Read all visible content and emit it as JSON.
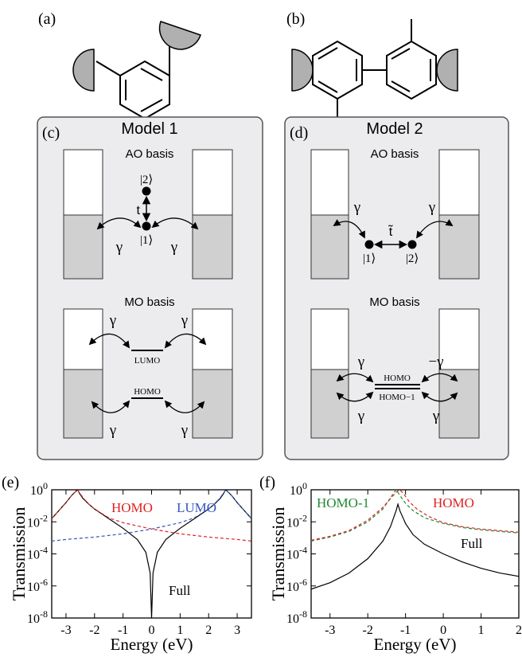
{
  "panels": {
    "a": {
      "label": "(a)"
    },
    "b": {
      "label": "(b)"
    },
    "c": {
      "label": "(c)",
      "title": "Model 1",
      "ao": {
        "heading": "AO basis",
        "site1": "|1⟩",
        "site2": "|2⟩",
        "hopping": "t",
        "coupling_left": "γ",
        "coupling_right": "γ"
      },
      "mo": {
        "heading": "MO basis",
        "lumo": "LUMO",
        "homo": "HOMO",
        "coupling_top_left": "γ",
        "coupling_top_right": "γ",
        "coupling_bottom_left": "γ",
        "coupling_bottom_right": "γ"
      }
    },
    "d": {
      "label": "(d)",
      "title": "Model 2",
      "ao": {
        "heading": "AO basis",
        "site1": "|1⟩",
        "site2": "|2⟩",
        "hopping": "t̃",
        "coupling_left": "γ",
        "coupling_right": "γ"
      },
      "mo": {
        "heading": "MO basis",
        "homo": "HOMO",
        "homo_minus_1": "HOMO−1",
        "coupling_top_left": "γ",
        "coupling_top_right": "−γ",
        "coupling_bottom_left": "γ",
        "coupling_bottom_right": "γ"
      }
    },
    "e": {
      "label": "(e)"
    },
    "f": {
      "label": "(f)"
    }
  },
  "chart_data": [
    {
      "type": "line",
      "panel": "e",
      "xlabel": "Energy (eV)",
      "ylabel": "Transmission",
      "xlim": [
        -3.5,
        3.5
      ],
      "ylim_log10": [
        -8,
        0
      ],
      "yscale": "log",
      "xticks": [
        "-3",
        "-2",
        "-1",
        "0",
        "1",
        "2",
        "3"
      ],
      "yticks": [
        "10^0",
        "10^-2",
        "10^-4",
        "10^-6",
        "10^-8"
      ],
      "series": [
        {
          "name": "Full",
          "color": "#000000",
          "style": "solid",
          "x": [
            -3.5,
            -3.2,
            -3.0,
            -2.8,
            -2.6,
            -2.5,
            -2.4,
            -2.2,
            -2.0,
            -1.5,
            -1.0,
            -0.5,
            -0.2,
            -0.05,
            0.0,
            0.05,
            0.2,
            0.5,
            1.0,
            1.5,
            2.0,
            2.2,
            2.4,
            2.5,
            2.6,
            2.8,
            3.0,
            3.2,
            3.5
          ],
          "log10_y": [
            -1.8,
            -1.2,
            -0.8,
            -0.35,
            0.0,
            -0.3,
            -0.55,
            -0.9,
            -1.2,
            -1.8,
            -2.4,
            -3.1,
            -3.9,
            -5.2,
            -8.0,
            -5.2,
            -3.9,
            -3.1,
            -2.4,
            -1.8,
            -1.2,
            -0.9,
            -0.55,
            -0.3,
            0.0,
            -0.35,
            -0.8,
            -1.2,
            -1.8
          ]
        },
        {
          "name": "HOMO",
          "color": "#dd2222",
          "style": "dashed",
          "x": [
            -3.5,
            -3.0,
            -2.8,
            -2.6,
            -2.4,
            -2.2,
            -2.0,
            -1.5,
            -1.0,
            0.0,
            1.0,
            2.0,
            3.0,
            3.5
          ],
          "log10_y": [
            -1.8,
            -0.8,
            -0.35,
            0.0,
            -0.5,
            -0.9,
            -1.2,
            -1.75,
            -2.05,
            -2.45,
            -2.75,
            -2.95,
            -3.1,
            -3.2
          ]
        },
        {
          "name": "LUMO",
          "color": "#3355bb",
          "style": "dashed",
          "x": [
            -3.5,
            -3.0,
            -2.0,
            -1.0,
            0.0,
            1.0,
            1.5,
            2.0,
            2.2,
            2.4,
            2.6,
            2.8,
            3.0,
            3.5
          ],
          "log10_y": [
            -3.2,
            -3.1,
            -2.95,
            -2.75,
            -2.45,
            -2.05,
            -1.75,
            -1.2,
            -0.9,
            -0.5,
            0.0,
            -0.35,
            -0.8,
            -1.8
          ]
        }
      ]
    },
    {
      "type": "line",
      "panel": "f",
      "xlabel": "Energy (eV)",
      "ylabel": "Transmission",
      "xlim": [
        -3.5,
        2.0
      ],
      "ylim_log10": [
        -8,
        0
      ],
      "yscale": "log",
      "xticks": [
        "-3",
        "-2",
        "-1",
        "0",
        "1",
        "2"
      ],
      "yticks": [
        "10^0",
        "10^-2",
        "10^-4",
        "10^-6",
        "10^-8"
      ],
      "series": [
        {
          "name": "Full",
          "color": "#000000",
          "style": "solid",
          "x": [
            -3.5,
            -3.0,
            -2.5,
            -2.0,
            -1.6,
            -1.4,
            -1.25,
            -1.2,
            -1.15,
            -1.0,
            -0.8,
            -0.5,
            0.0,
            0.5,
            1.0,
            1.5,
            2.0
          ],
          "log10_y": [
            -6.2,
            -5.8,
            -5.2,
            -4.3,
            -3.2,
            -2.3,
            -1.3,
            -0.9,
            -1.3,
            -2.1,
            -2.8,
            -3.4,
            -4.0,
            -4.5,
            -4.9,
            -5.2,
            -5.4
          ]
        },
        {
          "name": "HOMO-1",
          "color": "#228833",
          "style": "dashed",
          "x": [
            -3.5,
            -3.0,
            -2.5,
            -2.0,
            -1.6,
            -1.4,
            -1.3,
            -1.25,
            -1.15,
            -1.0,
            -0.8,
            -0.5,
            0.0,
            0.5,
            1.0,
            1.5,
            2.0
          ],
          "log10_y": [
            -3.2,
            -2.95,
            -2.6,
            -2.0,
            -1.2,
            -0.5,
            -0.15,
            0.0,
            -0.35,
            -0.85,
            -1.3,
            -1.75,
            -2.1,
            -2.35,
            -2.5,
            -2.6,
            -2.7
          ]
        },
        {
          "name": "HOMO",
          "color": "#dd2222",
          "style": "dashed",
          "x": [
            -3.5,
            -3.0,
            -2.5,
            -2.0,
            -1.6,
            -1.4,
            -1.25,
            -1.15,
            -1.05,
            -0.9,
            -0.7,
            -0.4,
            0.0,
            0.5,
            1.0,
            1.5,
            2.0
          ],
          "log10_y": [
            -3.15,
            -2.9,
            -2.55,
            -1.9,
            -1.1,
            -0.55,
            -0.15,
            0.0,
            -0.25,
            -0.75,
            -1.2,
            -1.65,
            -2.05,
            -2.3,
            -2.45,
            -2.55,
            -2.65
          ]
        }
      ]
    }
  ]
}
